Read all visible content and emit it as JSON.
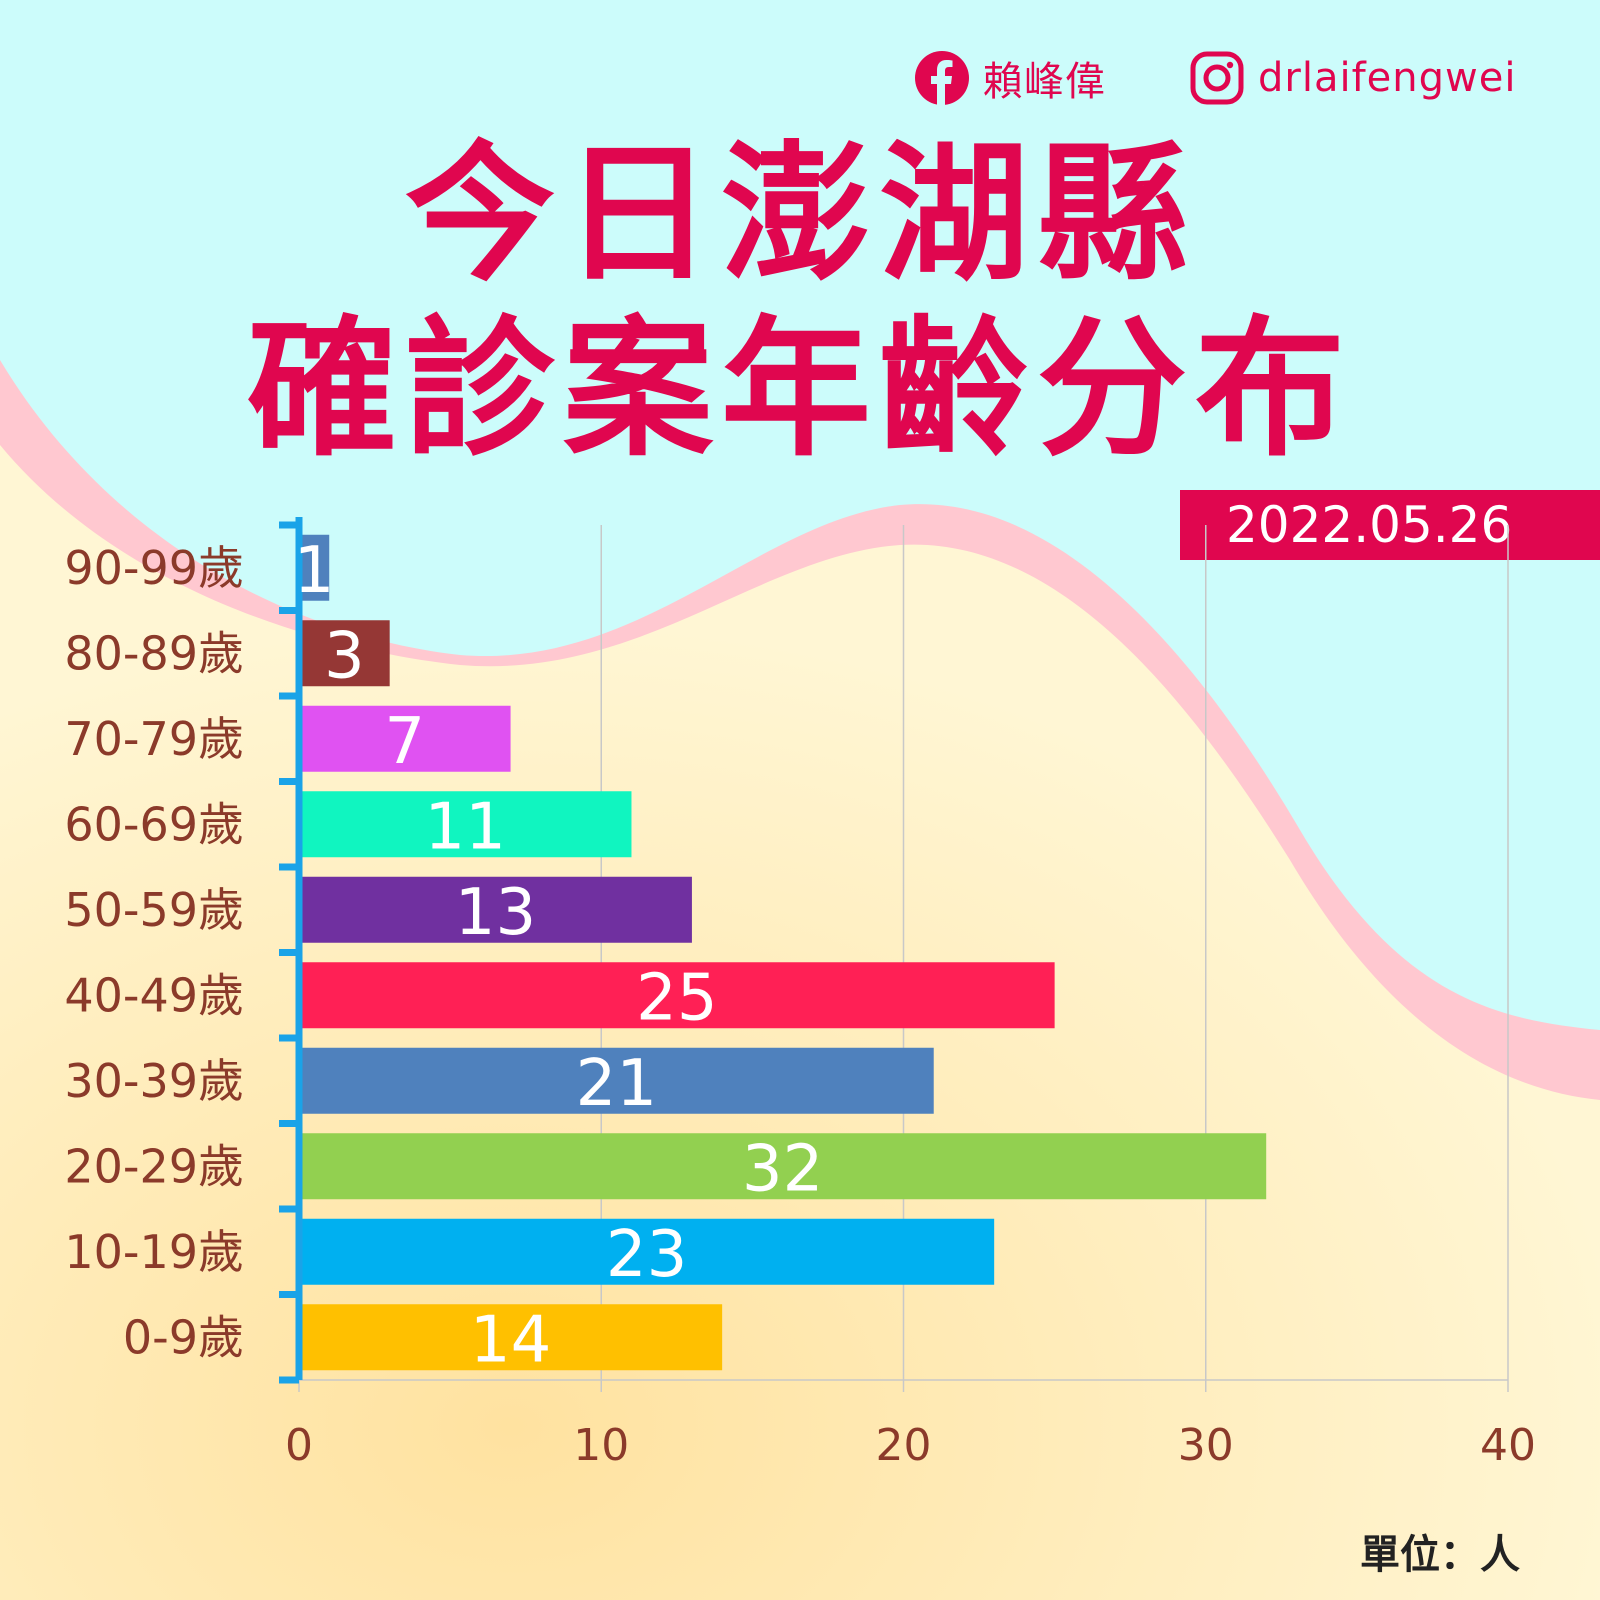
{
  "header": {
    "facebook": {
      "icon": "facebook-icon",
      "name": "賴峰偉"
    },
    "instagram": {
      "icon": "instagram-icon",
      "handle": "drlaifengwei"
    }
  },
  "title": {
    "line1": "今日澎湖縣",
    "line2": "確診案年齡分布"
  },
  "date": "2022.05.26",
  "unit": "單位：人",
  "colors": {
    "brand": "#e0064f",
    "sky": "#ccfcfb",
    "wave": "#ffc8d0",
    "sand": "#fff0c0",
    "label": "#8b3a2a",
    "axis": "#1aa3e8"
  },
  "chart_data": {
    "type": "bar",
    "orientation": "horizontal",
    "categories": [
      "90-99歲",
      "80-89歲",
      "70-79歲",
      "60-69歲",
      "50-59歲",
      "40-49歲",
      "30-39歲",
      "20-29歲",
      "10-19歲",
      "0-9歲"
    ],
    "values": [
      1,
      3,
      7,
      11,
      13,
      25,
      21,
      32,
      23,
      14
    ],
    "bar_colors": [
      "#4f81bd",
      "#953735",
      "#e052f2",
      "#10f5c0",
      "#7030a0",
      "#ff2055",
      "#4f81bd",
      "#92d050",
      "#00b0f0",
      "#ffc000"
    ],
    "xlim": [
      0,
      40
    ],
    "xticks": [
      0,
      10,
      20,
      30,
      40
    ],
    "grid": true,
    "data_labels": true
  }
}
